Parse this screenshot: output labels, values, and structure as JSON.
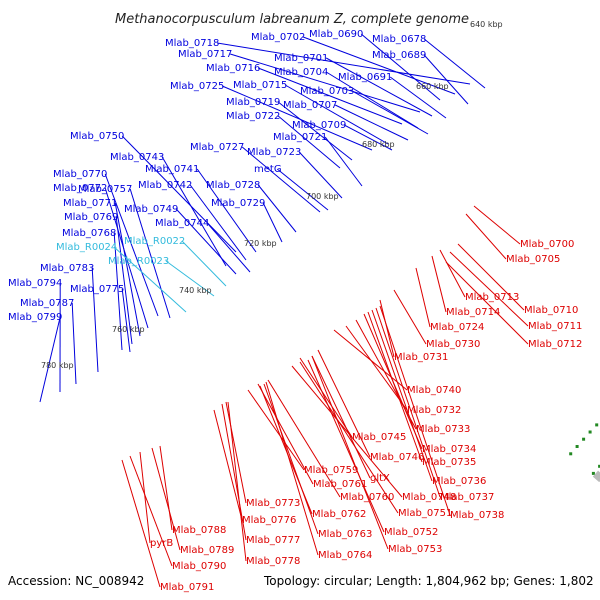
{
  "title": "Methanocorpusculum labreanum Z, complete genome",
  "accession": "Accession: NC_008942",
  "topology": "Topology: circular; Length: 1,804,962 bp; Genes: 1,802",
  "colors": {
    "forward": "#0000dd",
    "reverse": "#dd0000",
    "rna": "#33bbdd",
    "backbone": "#888888",
    "tick": "#228822"
  },
  "kbp_marks": [
    "640 kbp",
    "660 kbp",
    "680 kbp",
    "700 kbp",
    "720 kbp",
    "740 kbp",
    "760 kbp",
    "780 kbp"
  ],
  "forward_labels": [
    "Mlab_0718",
    "Mlab_0702",
    "Mlab_0690",
    "Mlab_0678",
    "Mlab_0717",
    "Mlab_0701",
    "Mlab_0689",
    "Mlab_0716",
    "Mlab_0704",
    "Mlab_0691",
    "Mlab_0725",
    "Mlab_0715",
    "Mlab_0703",
    "Mlab_0719",
    "Mlab_0707",
    "Mlab_0722",
    "Mlab_0709",
    "Mlab_0750",
    "Mlab_0727",
    "Mlab_0721",
    "Mlab_0743",
    "Mlab_0723",
    "Mlab_0741",
    "metG",
    "Mlab_0770",
    "Mlab_0742",
    "Mlab_0728",
    "Mlab_0772",
    "Mlab_0757",
    "Mlab_0771",
    "Mlab_0749",
    "Mlab_0729",
    "Mlab_0769",
    "Mlab_0744",
    "Mlab_0768",
    "Mlab_0783",
    "Mlab_0794",
    "Mlab_0775",
    "Mlab_0787",
    "Mlab_0799"
  ],
  "rna_labels": [
    "Mlab_R0024",
    "Mlab_R0022",
    "Mlab_R0023"
  ],
  "reverse_labels": [
    "Mlab_0700",
    "Mlab_0705",
    "Mlab_0713",
    "Mlab_0710",
    "Mlab_0714",
    "Mlab_0711",
    "Mlab_0724",
    "Mlab_0712",
    "Mlab_0730",
    "Mlab_0731",
    "Mlab_0740",
    "Mlab_0732",
    "Mlab_0733",
    "Mlab_0745",
    "Mlab_0734",
    "Mlab_0746",
    "Mlab_0735",
    "Mlab_0736",
    "Mlab_0759",
    "gltX",
    "Mlab_0737",
    "Mlab_0761",
    "Mlab_0748",
    "Mlab_0760",
    "Mlab_0738",
    "Mlab_0751",
    "Mlab_0762",
    "Mlab_0773",
    "Mlab_0752",
    "Mlab_0763",
    "Mlab_0776",
    "Mlab_0753",
    "Mlab_0777",
    "Mlab_0764",
    "Mlab_0788",
    "Mlab_0778",
    "pyrB",
    "Mlab_0789",
    "Mlab_0790",
    "Mlab_0791"
  ]
}
